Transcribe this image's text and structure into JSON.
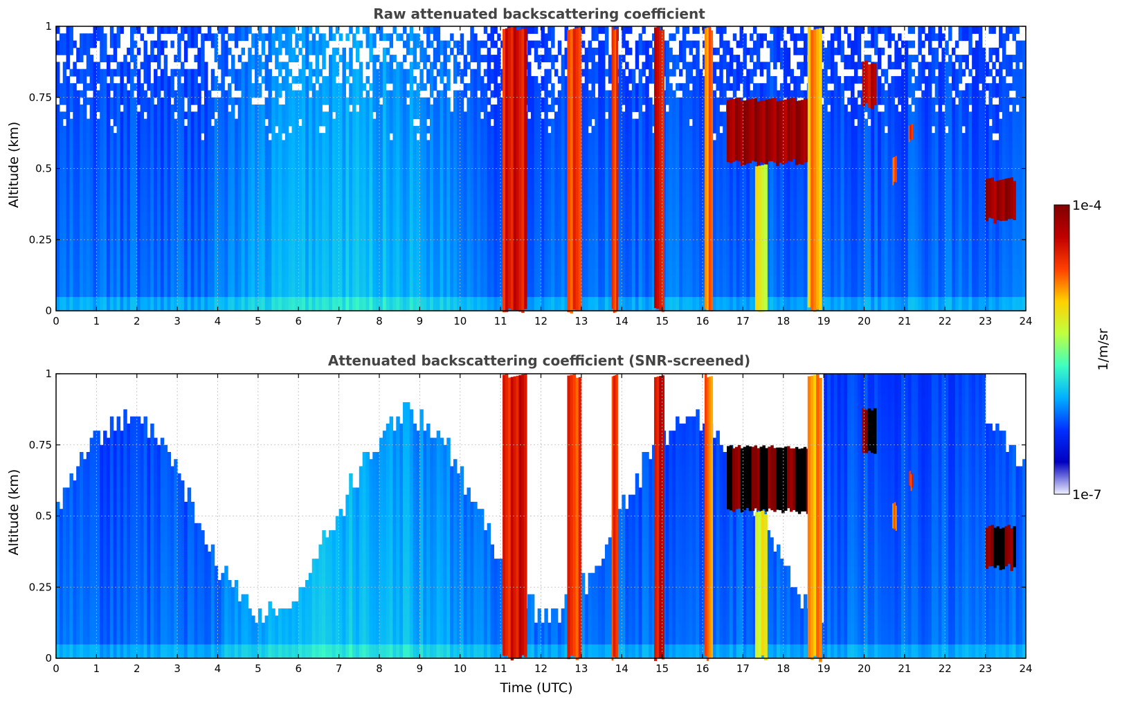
{
  "chart_data": [
    {
      "type": "heatmap",
      "title": "Raw attenuated backscattering coefficient",
      "xlabel": "",
      "ylabel": "Altitude (km)",
      "xlim": [
        0,
        24
      ],
      "ylim": [
        0,
        1
      ],
      "x_ticks": [
        "0",
        "1",
        "2",
        "3",
        "4",
        "5",
        "6",
        "7",
        "8",
        "9",
        "10",
        "11",
        "12",
        "13",
        "14",
        "15",
        "16",
        "17",
        "18",
        "19",
        "20",
        "21",
        "22",
        "23",
        "24"
      ],
      "y_ticks": [
        "0",
        "0.25",
        "0.5",
        "0.75",
        "1"
      ],
      "y_tick_values": [
        0,
        0.25,
        0.5,
        0.75,
        1
      ],
      "grid": true,
      "screened": false,
      "features": [
        {
          "t0": 11.05,
          "t1": 11.65,
          "z0": 0.0,
          "z1": 1.0,
          "level": 0.85
        },
        {
          "t0": 12.65,
          "t1": 13.0,
          "z0": 0.0,
          "z1": 1.0,
          "level": 0.8
        },
        {
          "t0": 13.75,
          "t1": 13.9,
          "z0": 0.0,
          "z1": 1.0,
          "level": 0.8
        },
        {
          "t0": 14.8,
          "t1": 15.05,
          "z0": 0.0,
          "z1": 1.0,
          "level": 0.85
        },
        {
          "t0": 16.05,
          "t1": 16.25,
          "z0": 0.0,
          "z1": 1.0,
          "level": 0.75
        },
        {
          "t0": 16.6,
          "t1": 18.7,
          "z0": 0.52,
          "z1": 0.75,
          "level": 0.95
        },
        {
          "t0": 17.3,
          "t1": 17.6,
          "z0": 0.0,
          "z1": 0.52,
          "level": 0.6
        },
        {
          "t0": 18.6,
          "t1": 18.95,
          "z0": 0.0,
          "z1": 1.0,
          "level": 0.7
        },
        {
          "t0": 19.95,
          "t1": 20.3,
          "z0": 0.72,
          "z1": 0.88,
          "level": 0.9
        },
        {
          "t0": 23.0,
          "t1": 23.75,
          "z0": 0.32,
          "z1": 0.47,
          "level": 0.95
        },
        {
          "t0": 21.1,
          "t1": 21.2,
          "z0": 0.6,
          "z1": 0.66,
          "level": 0.8
        },
        {
          "t0": 20.7,
          "t1": 20.8,
          "z0": 0.45,
          "z1": 0.55,
          "level": 0.75
        }
      ]
    },
    {
      "type": "heatmap",
      "title": "Attenuated backscattering coefficient (SNR-screened)",
      "xlabel": "Time (UTC)",
      "ylabel": "Altitude (km)",
      "xlim": [
        0,
        24
      ],
      "ylim": [
        0,
        1
      ],
      "x_ticks": [
        "0",
        "1",
        "2",
        "3",
        "4",
        "5",
        "6",
        "7",
        "8",
        "9",
        "10",
        "11",
        "12",
        "13",
        "14",
        "15",
        "16",
        "17",
        "18",
        "19",
        "20",
        "21",
        "22",
        "23",
        "24"
      ],
      "y_ticks": [
        "0",
        "0.25",
        "0.5",
        "0.75",
        "1"
      ],
      "y_tick_values": [
        0,
        0.25,
        0.5,
        0.75,
        1
      ],
      "grid": true,
      "screened": true,
      "features": [
        {
          "t0": 11.05,
          "t1": 11.65,
          "z0": 0.0,
          "z1": 1.0,
          "level": 0.85
        },
        {
          "t0": 12.65,
          "t1": 13.0,
          "z0": 0.0,
          "z1": 1.0,
          "level": 0.8
        },
        {
          "t0": 13.75,
          "t1": 13.9,
          "z0": 0.0,
          "z1": 1.0,
          "level": 0.8
        },
        {
          "t0": 14.8,
          "t1": 15.05,
          "z0": 0.0,
          "z1": 1.0,
          "level": 0.85
        },
        {
          "t0": 16.05,
          "t1": 16.25,
          "z0": 0.0,
          "z1": 1.0,
          "level": 0.75
        },
        {
          "t0": 16.6,
          "t1": 18.7,
          "z0": 0.52,
          "z1": 0.75,
          "level": 1.0
        },
        {
          "t0": 17.3,
          "t1": 17.6,
          "z0": 0.0,
          "z1": 0.52,
          "level": 0.6
        },
        {
          "t0": 18.6,
          "t1": 18.95,
          "z0": 0.0,
          "z1": 1.0,
          "level": 0.7
        },
        {
          "t0": 19.95,
          "t1": 20.3,
          "z0": 0.72,
          "z1": 0.88,
          "level": 1.0
        },
        {
          "t0": 23.0,
          "t1": 23.75,
          "z0": 0.32,
          "z1": 0.47,
          "level": 1.0
        },
        {
          "t0": 21.1,
          "t1": 21.2,
          "z0": 0.6,
          "z1": 0.66,
          "level": 0.8
        },
        {
          "t0": 20.7,
          "t1": 20.8,
          "z0": 0.45,
          "z1": 0.55,
          "level": 0.75
        }
      ]
    }
  ],
  "colorbar": {
    "min_label": "1e-7",
    "max_label": "1e-4",
    "unit_label": "1/m/sr",
    "colormap": "jet",
    "colors": [
      "#f0f0ff",
      "#0000c0",
      "#0030ff",
      "#00b0ff",
      "#40ffc0",
      "#c0ff40",
      "#ffd000",
      "#ff4000",
      "#c00000",
      "#800000"
    ]
  }
}
